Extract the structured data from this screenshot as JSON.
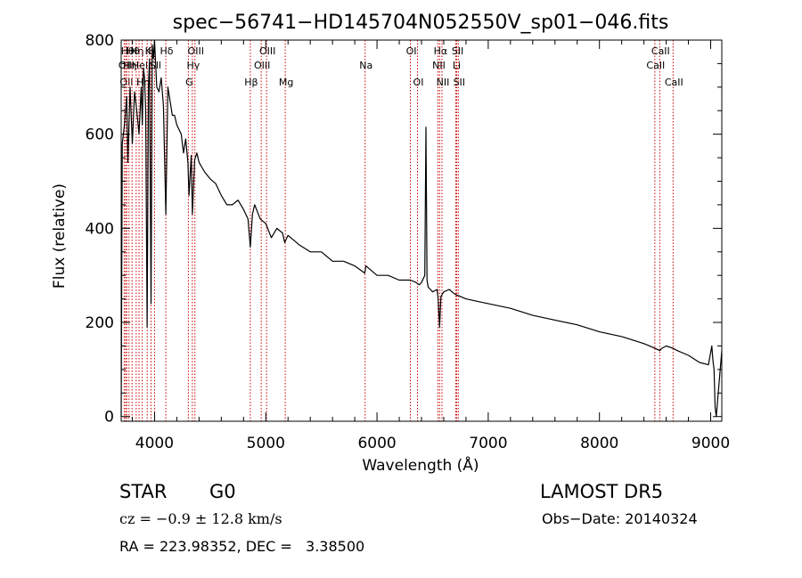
{
  "chart_data": {
    "type": "line",
    "title": "spec−56741−HD145704N052550V_sp01−046.fits",
    "xlabel": "Wavelength (Å)",
    "ylabel": "Flux (relative)",
    "xlim": [
      3700,
      9100
    ],
    "ylim": [
      -10,
      800
    ],
    "xticks": [
      4000,
      5000,
      6000,
      7000,
      8000,
      9000
    ],
    "yticks": [
      0,
      200,
      400,
      600,
      800
    ],
    "grid": false,
    "series": [
      {
        "x": [
          3700,
          3710,
          3730,
          3750,
          3760,
          3780,
          3800,
          3820,
          3840,
          3860,
          3880,
          3890,
          3900,
          3910,
          3920,
          3933,
          3945,
          3955,
          3968,
          3980,
          3990,
          4000,
          4020,
          4040,
          4060,
          4080,
          4101,
          4120,
          4140,
          4160,
          4180,
          4200,
          4220,
          4240,
          4260,
          4280,
          4300,
          4310,
          4330,
          4340,
          4360,
          4380,
          4400,
          4450,
          4500,
          4550,
          4600,
          4650,
          4700,
          4750,
          4800,
          4840,
          4861,
          4880,
          4900,
          4950,
          5000,
          5050,
          5100,
          5150,
          5170,
          5200,
          5250,
          5300,
          5400,
          5500,
          5600,
          5700,
          5800,
          5890,
          5900,
          6000,
          6100,
          6200,
          6300,
          6350,
          6380,
          6400,
          6430,
          6440,
          6450,
          6460,
          6480,
          6500,
          6540,
          6550,
          6563,
          6575,
          6600,
          6650,
          6700,
          6800,
          6900,
          7000,
          7200,
          7400,
          7600,
          7800,
          8000,
          8200,
          8400,
          8500,
          8542,
          8560,
          8600,
          8662,
          8700,
          8800,
          8900,
          8980,
          9010,
          9020,
          9030,
          9040,
          9050,
          9100
        ],
        "y": [
          0,
          580,
          620,
          680,
          540,
          700,
          580,
          690,
          650,
          600,
          700,
          620,
          740,
          720,
          650,
          190,
          700,
          760,
          240,
          790,
          760,
          800,
          700,
          690,
          720,
          660,
          430,
          700,
          670,
          640,
          640,
          620,
          610,
          600,
          560,
          590,
          540,
          470,
          555,
          430,
          545,
          560,
          540,
          520,
          505,
          495,
          470,
          450,
          450,
          460,
          440,
          420,
          360,
          430,
          450,
          420,
          410,
          380,
          400,
          390,
          370,
          385,
          375,
          365,
          350,
          350,
          330,
          330,
          320,
          305,
          320,
          300,
          300,
          290,
          290,
          285,
          280,
          285,
          300,
          615,
          290,
          275,
          270,
          265,
          270,
          250,
          190,
          255,
          265,
          270,
          260,
          250,
          245,
          240,
          230,
          215,
          205,
          195,
          180,
          170,
          155,
          145,
          140,
          145,
          150,
          145,
          140,
          130,
          115,
          110,
          150,
          120,
          100,
          20,
          0,
          140
        ]
      }
    ],
    "line_markers": [
      {
        "wavelength": 3727,
        "label": "OII",
        "row": 2
      },
      {
        "wavelength": 3740,
        "label": "OII",
        "row": 3
      },
      {
        "wavelength": 3750,
        "label": "Hθ",
        "row": 1
      },
      {
        "wavelength": 3770,
        "label": "Hη",
        "row": 2
      },
      {
        "wavelength": 3798,
        "label": "Hθ",
        "row": 1
      },
      {
        "wavelength": 3835,
        "label": "Hη",
        "row": 1
      },
      {
        "wavelength": 3860,
        "label": "Hel",
        "row": 2
      },
      {
        "wavelength": 3889,
        "label": "Hη",
        "row": 3
      },
      {
        "wavelength": 3934,
        "label": "K",
        "row": 1
      },
      {
        "wavelength": 3968,
        "label": "H",
        "row": 1
      },
      {
        "wavelength": 4000,
        "label": "Sll",
        "row": 2
      },
      {
        "wavelength": 4101,
        "label": "Hδ",
        "row": 1
      },
      {
        "wavelength": 4304,
        "label": "G",
        "row": 3
      },
      {
        "wavelength": 4340,
        "label": "Hγ",
        "row": 2
      },
      {
        "wavelength": 4363,
        "label": "OIII",
        "row": 1
      },
      {
        "wavelength": 4861,
        "label": "Hβ",
        "row": 3
      },
      {
        "wavelength": 4959,
        "label": "OIII",
        "row": 2
      },
      {
        "wavelength": 5007,
        "label": "OIII",
        "row": 1
      },
      {
        "wavelength": 5175,
        "label": "Mg",
        "row": 3
      },
      {
        "wavelength": 5893,
        "label": "Na",
        "row": 2
      },
      {
        "wavelength": 6300,
        "label": "OI",
        "row": 1
      },
      {
        "wavelength": 6364,
        "label": "OI",
        "row": 3
      },
      {
        "wavelength": 6548,
        "label": "NII",
        "row": 2
      },
      {
        "wavelength": 6563,
        "label": "Hα",
        "row": 1
      },
      {
        "wavelength": 6584,
        "label": "NII",
        "row": 3
      },
      {
        "wavelength": 6708,
        "label": "Li",
        "row": 2
      },
      {
        "wavelength": 6717,
        "label": "SII",
        "row": 1
      },
      {
        "wavelength": 6731,
        "label": "SII",
        "row": 3
      },
      {
        "wavelength": 8498,
        "label": "CaII",
        "row": 2
      },
      {
        "wavelength": 8542,
        "label": "CaII",
        "row": 1
      },
      {
        "wavelength": 8662,
        "label": "CaII",
        "row": 3
      }
    ]
  },
  "info": {
    "object_class": "STAR",
    "subclass": "G0",
    "survey": "LAMOST DR5",
    "velocity": "cz = −0.9 ± 12.8 km/s",
    "obs_date": "Obs−Date: 20140324",
    "coordinates": "RA = 223.98352, DEC =   3.38500"
  },
  "colors": {
    "spectrum": "#000000",
    "line_marker": "#cc0000",
    "axes": "#000000"
  }
}
